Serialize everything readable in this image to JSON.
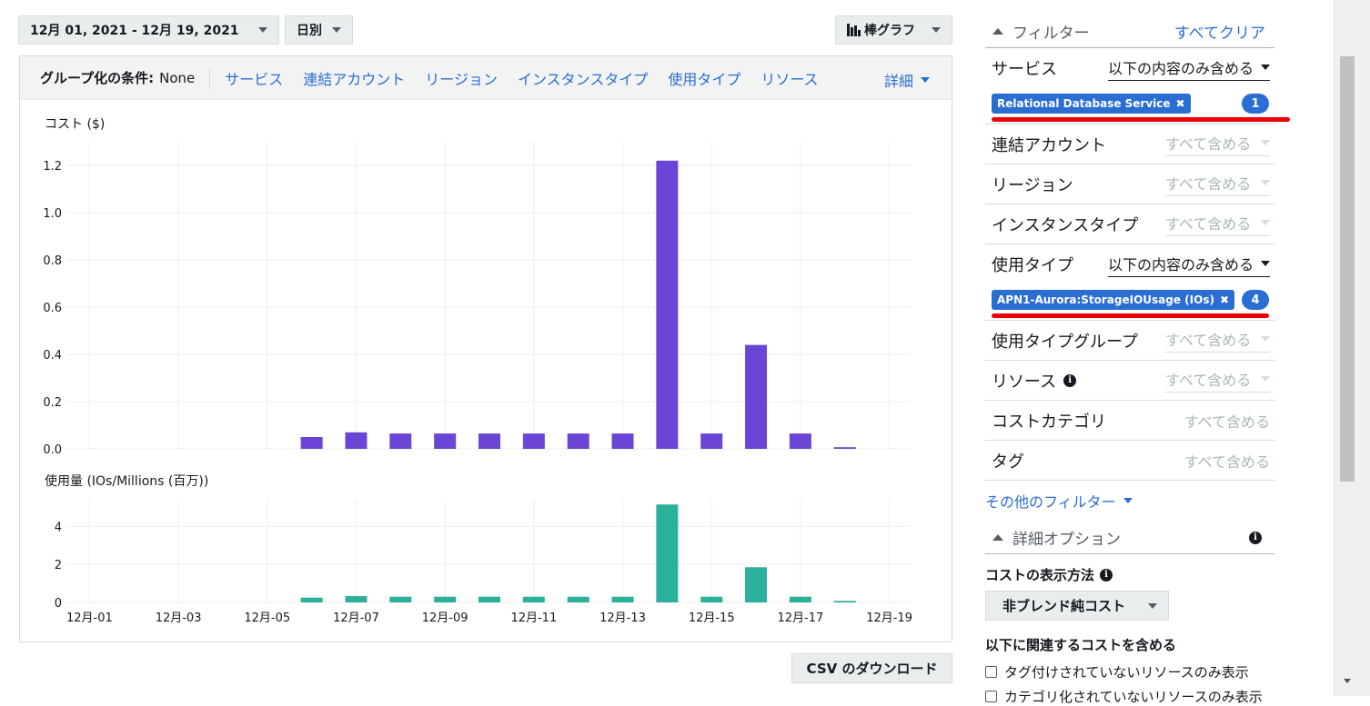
{
  "toolbar": {
    "date_range": "12月 01, 2021 - 12月 19, 2021",
    "granularity": "日別",
    "chart_type": "棒グラフ"
  },
  "group_by": {
    "label": "グループ化の条件:",
    "value": "None",
    "options": [
      "サービス",
      "連結アカウント",
      "リージョン",
      "インスタンスタイプ",
      "使用タイプ",
      "リソース"
    ],
    "more": "詳細"
  },
  "chart_data": [
    {
      "type": "bar",
      "ylabel": "コスト ($)",
      "categories": [
        "12月-01",
        "12月-02",
        "12月-03",
        "12月-04",
        "12月-05",
        "12月-06",
        "12月-07",
        "12月-08",
        "12月-09",
        "12月-10",
        "12月-11",
        "12月-12",
        "12月-13",
        "12月-14",
        "12月-15",
        "12月-16",
        "12月-17",
        "12月-18",
        "12月-19"
      ],
      "values": [
        0,
        0,
        0,
        0,
        0,
        0.05,
        0.07,
        0.065,
        0.065,
        0.065,
        0.065,
        0.065,
        0.065,
        1.22,
        0.065,
        0.44,
        0.065,
        0.007,
        0
      ],
      "yticks": [
        "0.0",
        "0.2",
        "0.4",
        "0.6",
        "0.8",
        "1.0",
        "1.2"
      ],
      "ylim": [
        0,
        1.3
      ],
      "color": "#6b46d6",
      "grid": true
    },
    {
      "type": "bar",
      "ylabel": "使用量 (IOs/Millions (百万))",
      "categories": [
        "12月-01",
        "12月-02",
        "12月-03",
        "12月-04",
        "12月-05",
        "12月-06",
        "12月-07",
        "12月-08",
        "12月-09",
        "12月-10",
        "12月-11",
        "12月-12",
        "12月-13",
        "12月-14",
        "12月-15",
        "12月-16",
        "12月-17",
        "12月-18",
        "12月-19"
      ],
      "values": [
        0,
        0,
        0,
        0,
        0,
        0.25,
        0.33,
        0.3,
        0.3,
        0.3,
        0.3,
        0.3,
        0.3,
        5.15,
        0.3,
        1.85,
        0.3,
        0.08,
        0
      ],
      "yticks": [
        "0",
        "2",
        "4"
      ],
      "ylim": [
        0,
        5.4
      ],
      "xticks": [
        "12月-01",
        "12月-03",
        "12月-05",
        "12月-07",
        "12月-09",
        "12月-11",
        "12月-13",
        "12月-15",
        "12月-17",
        "12月-19"
      ],
      "color": "#2bb09b",
      "grid": true
    }
  ],
  "csv_button": "CSV のダウンロード",
  "filters": {
    "title": "フィルター",
    "clear_all": "すべてクリア",
    "service": {
      "label": "サービス",
      "mode": "以下の内容のみ含める",
      "token": "Relational Database Service",
      "count": "1"
    },
    "linked_account": {
      "label": "連結アカウント",
      "mode": "すべて含める"
    },
    "region": {
      "label": "リージョン",
      "mode": "すべて含める"
    },
    "instance_type": {
      "label": "インスタンスタイプ",
      "mode": "すべて含める"
    },
    "usage_type": {
      "label": "使用タイプ",
      "mode": "以下の内容のみ含める",
      "token": "APN1-Aurora:StorageIOUsage (IOs)",
      "count": "4"
    },
    "usage_type_group": {
      "label": "使用タイプグループ",
      "mode": "すべて含める"
    },
    "resource": {
      "label": "リソース",
      "mode": "すべて含める"
    },
    "cost_category": {
      "label": "コストカテゴリ",
      "mode": "すべて含める"
    },
    "tag": {
      "label": "タグ",
      "mode": "すべて含める"
    },
    "more": "その他のフィルター"
  },
  "advanced": {
    "title": "詳細オプション",
    "cost_display_label": "コストの表示方法",
    "cost_display_value": "非ブレンド純コスト",
    "include_label": "以下に関連するコストを含める",
    "checkbox_1": "タグ付けされていないリソースのみ表示",
    "checkbox_2": "カテゴリ化されていないリソースのみ表示"
  }
}
